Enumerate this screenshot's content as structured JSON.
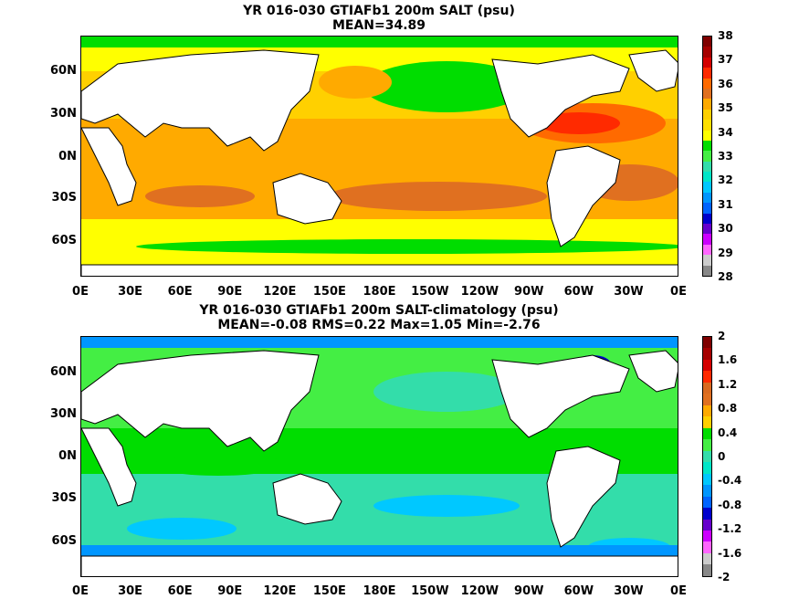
{
  "panel1": {
    "title_line1": "YR 016-030 GTIAFb1 200m SALT (psu)",
    "title_line2": "MEAN=34.89",
    "colorbar_labels": [
      "38",
      "37",
      "36",
      "35",
      "34",
      "33",
      "32",
      "31",
      "30",
      "29",
      "28"
    ],
    "colorbar_colors": [
      "#7f0000",
      "#a50000",
      "#d40000",
      "#ff2a00",
      "#ff6a00",
      "#e07020",
      "#ffaa00",
      "#ffd000",
      "#ffe000",
      "#ffff00",
      "#00dd00",
      "#44ee44",
      "#33ddaa",
      "#00e6c8",
      "#00c8ff",
      "#0096ff",
      "#0064ff",
      "#0000cc",
      "#6600cc",
      "#cc00ff",
      "#ff66ff",
      "#cccccc",
      "#888888"
    ]
  },
  "panel2": {
    "title_line1": "YR 016-030 GTIAFb1 200m SALT-climatology (psu)",
    "title_line2": "MEAN=-0.08   RMS=0.22   Max=1.05   Min=-2.76",
    "colorbar_labels": [
      "2",
      "1.6",
      "1.2",
      "0.8",
      "0.4",
      "0",
      "-0.4",
      "-0.8",
      "-1.2",
      "-1.6",
      "-2"
    ],
    "colorbar_colors": [
      "#7f0000",
      "#a50000",
      "#d40000",
      "#ff2a00",
      "#d96a20",
      "#e07020",
      "#ffaa00",
      "#ffd000",
      "#00dd00",
      "#44ee44",
      "#33ddaa",
      "#00e6c8",
      "#00c8ff",
      "#0096ff",
      "#0064ff",
      "#0000cc",
      "#6600cc",
      "#cc00ff",
      "#ff66ff",
      "#cccccc",
      "#888888"
    ]
  },
  "axes": {
    "y_ticks": [
      "60N",
      "30N",
      "0N",
      "30S",
      "60S"
    ],
    "x_ticks": [
      "0E",
      "30E",
      "60E",
      "90E",
      "120E",
      "150E",
      "180E",
      "150W",
      "120W",
      "90W",
      "60W",
      "30W",
      "0E"
    ]
  },
  "colors": {
    "land": "#ffffff",
    "coast": "#000000"
  }
}
